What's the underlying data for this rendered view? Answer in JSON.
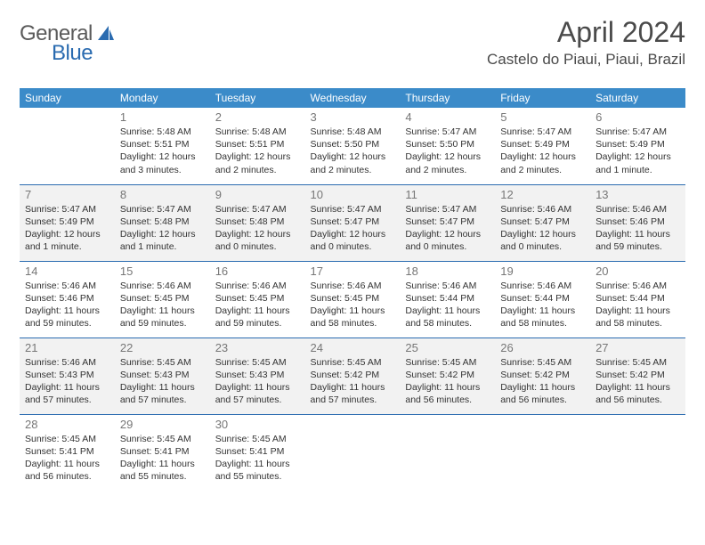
{
  "logo": {
    "general": "General",
    "blue": "Blue"
  },
  "title": "April 2024",
  "location": "Castelo do Piaui, Piaui, Brazil",
  "colors": {
    "header_bg": "#3b8bc9",
    "header_text": "#ffffff",
    "border": "#2a6bb0",
    "shade": "#f2f2f2",
    "logo_gray": "#5a5a5a",
    "logo_blue": "#2a6bb0"
  },
  "weekdays": [
    "Sunday",
    "Monday",
    "Tuesday",
    "Wednesday",
    "Thursday",
    "Friday",
    "Saturday"
  ],
  "weeks": [
    {
      "shaded": false,
      "days": [
        null,
        {
          "n": "1",
          "sr": "Sunrise: 5:48 AM",
          "ss": "Sunset: 5:51 PM",
          "dl1": "Daylight: 12 hours",
          "dl2": "and 3 minutes."
        },
        {
          "n": "2",
          "sr": "Sunrise: 5:48 AM",
          "ss": "Sunset: 5:51 PM",
          "dl1": "Daylight: 12 hours",
          "dl2": "and 2 minutes."
        },
        {
          "n": "3",
          "sr": "Sunrise: 5:48 AM",
          "ss": "Sunset: 5:50 PM",
          "dl1": "Daylight: 12 hours",
          "dl2": "and 2 minutes."
        },
        {
          "n": "4",
          "sr": "Sunrise: 5:47 AM",
          "ss": "Sunset: 5:50 PM",
          "dl1": "Daylight: 12 hours",
          "dl2": "and 2 minutes."
        },
        {
          "n": "5",
          "sr": "Sunrise: 5:47 AM",
          "ss": "Sunset: 5:49 PM",
          "dl1": "Daylight: 12 hours",
          "dl2": "and 2 minutes."
        },
        {
          "n": "6",
          "sr": "Sunrise: 5:47 AM",
          "ss": "Sunset: 5:49 PM",
          "dl1": "Daylight: 12 hours",
          "dl2": "and 1 minute."
        }
      ]
    },
    {
      "shaded": true,
      "days": [
        {
          "n": "7",
          "sr": "Sunrise: 5:47 AM",
          "ss": "Sunset: 5:49 PM",
          "dl1": "Daylight: 12 hours",
          "dl2": "and 1 minute."
        },
        {
          "n": "8",
          "sr": "Sunrise: 5:47 AM",
          "ss": "Sunset: 5:48 PM",
          "dl1": "Daylight: 12 hours",
          "dl2": "and 1 minute."
        },
        {
          "n": "9",
          "sr": "Sunrise: 5:47 AM",
          "ss": "Sunset: 5:48 PM",
          "dl1": "Daylight: 12 hours",
          "dl2": "and 0 minutes."
        },
        {
          "n": "10",
          "sr": "Sunrise: 5:47 AM",
          "ss": "Sunset: 5:47 PM",
          "dl1": "Daylight: 12 hours",
          "dl2": "and 0 minutes."
        },
        {
          "n": "11",
          "sr": "Sunrise: 5:47 AM",
          "ss": "Sunset: 5:47 PM",
          "dl1": "Daylight: 12 hours",
          "dl2": "and 0 minutes."
        },
        {
          "n": "12",
          "sr": "Sunrise: 5:46 AM",
          "ss": "Sunset: 5:47 PM",
          "dl1": "Daylight: 12 hours",
          "dl2": "and 0 minutes."
        },
        {
          "n": "13",
          "sr": "Sunrise: 5:46 AM",
          "ss": "Sunset: 5:46 PM",
          "dl1": "Daylight: 11 hours",
          "dl2": "and 59 minutes."
        }
      ]
    },
    {
      "shaded": false,
      "days": [
        {
          "n": "14",
          "sr": "Sunrise: 5:46 AM",
          "ss": "Sunset: 5:46 PM",
          "dl1": "Daylight: 11 hours",
          "dl2": "and 59 minutes."
        },
        {
          "n": "15",
          "sr": "Sunrise: 5:46 AM",
          "ss": "Sunset: 5:45 PM",
          "dl1": "Daylight: 11 hours",
          "dl2": "and 59 minutes."
        },
        {
          "n": "16",
          "sr": "Sunrise: 5:46 AM",
          "ss": "Sunset: 5:45 PM",
          "dl1": "Daylight: 11 hours",
          "dl2": "and 59 minutes."
        },
        {
          "n": "17",
          "sr": "Sunrise: 5:46 AM",
          "ss": "Sunset: 5:45 PM",
          "dl1": "Daylight: 11 hours",
          "dl2": "and 58 minutes."
        },
        {
          "n": "18",
          "sr": "Sunrise: 5:46 AM",
          "ss": "Sunset: 5:44 PM",
          "dl1": "Daylight: 11 hours",
          "dl2": "and 58 minutes."
        },
        {
          "n": "19",
          "sr": "Sunrise: 5:46 AM",
          "ss": "Sunset: 5:44 PM",
          "dl1": "Daylight: 11 hours",
          "dl2": "and 58 minutes."
        },
        {
          "n": "20",
          "sr": "Sunrise: 5:46 AM",
          "ss": "Sunset: 5:44 PM",
          "dl1": "Daylight: 11 hours",
          "dl2": "and 58 minutes."
        }
      ]
    },
    {
      "shaded": true,
      "days": [
        {
          "n": "21",
          "sr": "Sunrise: 5:46 AM",
          "ss": "Sunset: 5:43 PM",
          "dl1": "Daylight: 11 hours",
          "dl2": "and 57 minutes."
        },
        {
          "n": "22",
          "sr": "Sunrise: 5:45 AM",
          "ss": "Sunset: 5:43 PM",
          "dl1": "Daylight: 11 hours",
          "dl2": "and 57 minutes."
        },
        {
          "n": "23",
          "sr": "Sunrise: 5:45 AM",
          "ss": "Sunset: 5:43 PM",
          "dl1": "Daylight: 11 hours",
          "dl2": "and 57 minutes."
        },
        {
          "n": "24",
          "sr": "Sunrise: 5:45 AM",
          "ss": "Sunset: 5:42 PM",
          "dl1": "Daylight: 11 hours",
          "dl2": "and 57 minutes."
        },
        {
          "n": "25",
          "sr": "Sunrise: 5:45 AM",
          "ss": "Sunset: 5:42 PM",
          "dl1": "Daylight: 11 hours",
          "dl2": "and 56 minutes."
        },
        {
          "n": "26",
          "sr": "Sunrise: 5:45 AM",
          "ss": "Sunset: 5:42 PM",
          "dl1": "Daylight: 11 hours",
          "dl2": "and 56 minutes."
        },
        {
          "n": "27",
          "sr": "Sunrise: 5:45 AM",
          "ss": "Sunset: 5:42 PM",
          "dl1": "Daylight: 11 hours",
          "dl2": "and 56 minutes."
        }
      ]
    },
    {
      "shaded": false,
      "days": [
        {
          "n": "28",
          "sr": "Sunrise: 5:45 AM",
          "ss": "Sunset: 5:41 PM",
          "dl1": "Daylight: 11 hours",
          "dl2": "and 56 minutes."
        },
        {
          "n": "29",
          "sr": "Sunrise: 5:45 AM",
          "ss": "Sunset: 5:41 PM",
          "dl1": "Daylight: 11 hours",
          "dl2": "and 55 minutes."
        },
        {
          "n": "30",
          "sr": "Sunrise: 5:45 AM",
          "ss": "Sunset: 5:41 PM",
          "dl1": "Daylight: 11 hours",
          "dl2": "and 55 minutes."
        },
        null,
        null,
        null,
        null
      ]
    }
  ]
}
